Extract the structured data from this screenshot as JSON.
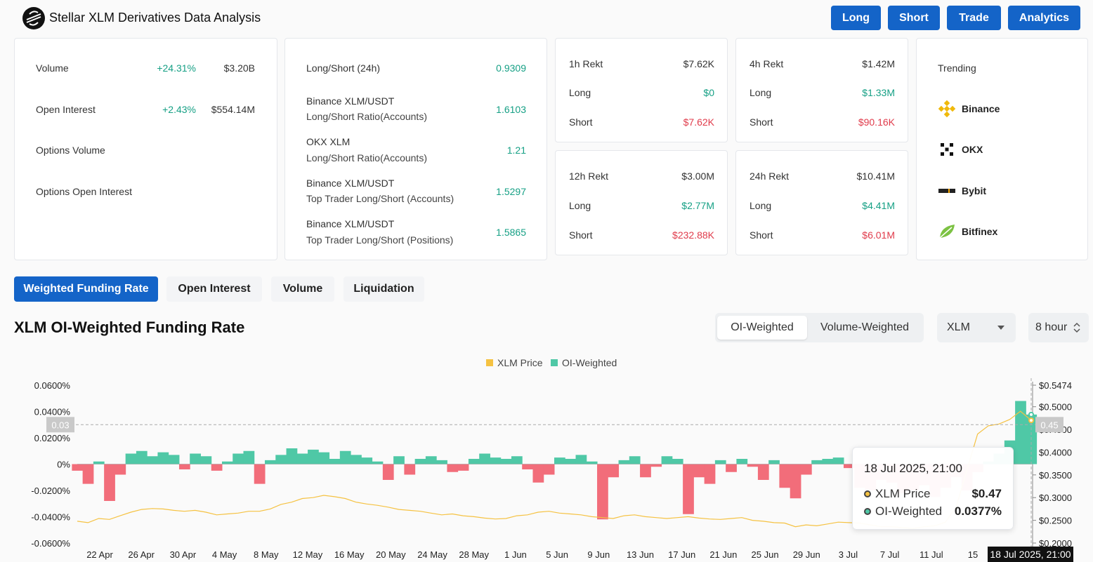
{
  "header": {
    "title": "Stellar XLM Derivatives Data Analysis",
    "buttons": [
      "Long",
      "Short",
      "Trade",
      "Analytics"
    ]
  },
  "overview": {
    "rows": [
      {
        "label": "Volume",
        "change": "+24.31%",
        "value": "$3.20B"
      },
      {
        "label": "Open Interest",
        "change": "+2.43%",
        "value": "$554.14M"
      },
      {
        "label": "Options Volume",
        "change": "",
        "value": ""
      },
      {
        "label": "Options Open Interest",
        "change": "",
        "value": ""
      }
    ]
  },
  "ratios": {
    "rows": [
      {
        "line1": "Long/Short (24h)",
        "line2": "",
        "value": "0.9309"
      },
      {
        "line1": "Binance XLM/USDT",
        "line2": "Long/Short Ratio(Accounts)",
        "value": "1.6103"
      },
      {
        "line1": "OKX XLM",
        "line2": "Long/Short Ratio(Accounts)",
        "value": "1.21"
      },
      {
        "line1": "Binance XLM/USDT",
        "line2": "Top Trader Long/Short (Accounts)",
        "value": "1.5297"
      },
      {
        "line1": "Binance XLM/USDT",
        "line2": "Top Trader Long/Short (Positions)",
        "value": "1.5865"
      }
    ]
  },
  "rekt": [
    {
      "title": "1h Rekt",
      "total": "$7.62K",
      "long_label": "Long",
      "long": "$0",
      "short_label": "Short",
      "short": "$7.62K"
    },
    {
      "title": "4h Rekt",
      "total": "$1.42M",
      "long_label": "Long",
      "long": "$1.33M",
      "short_label": "Short",
      "short": "$90.16K"
    },
    {
      "title": "12h Rekt",
      "total": "$3.00M",
      "long_label": "Long",
      "long": "$2.77M",
      "short_label": "Short",
      "short": "$232.88K"
    },
    {
      "title": "24h Rekt",
      "total": "$10.41M",
      "long_label": "Long",
      "long": "$4.41M",
      "short_label": "Short",
      "short": "$6.01M"
    }
  ],
  "trending": {
    "title": "Trending",
    "items": [
      {
        "name": "Binance",
        "icon": "binance-icon"
      },
      {
        "name": "OKX",
        "icon": "okx-icon"
      },
      {
        "name": "Bybit",
        "icon": "bybit-icon"
      },
      {
        "name": "Bitfinex",
        "icon": "bitfinex-icon"
      }
    ]
  },
  "tabs": [
    "Weighted Funding Rate",
    "Open Interest",
    "Volume",
    "Liquidation"
  ],
  "section_title": "XLM OI-Weighted Funding Rate",
  "weighting": {
    "options": [
      "OI-Weighted",
      "Volume-Weighted"
    ],
    "selected": "OI-Weighted"
  },
  "symbol_select": "XLM",
  "interval_select": "8 hour",
  "colors": {
    "accent": "#1464c8",
    "positive": "#16a085",
    "negative": "#e03b4b",
    "funding_pos_fill": "#4fc8a6",
    "funding_neg_fill": "#f26d7a",
    "price_line": "#f5c242"
  },
  "tooltip": {
    "date": "18 Jul 2025, 21:00",
    "rows": [
      {
        "name": "XLM Price",
        "value": "$0.47"
      },
      {
        "name": "OI-Weighted",
        "value": "0.0377%"
      }
    ]
  },
  "crosshair": {
    "left_label": "0.03",
    "right_label": "0.45",
    "x_label": "18 Jul 2025, 21:00"
  },
  "chart_data": {
    "type": "area",
    "legend": [
      "XLM Price",
      "OI-Weighted"
    ],
    "legend_position": "top-center",
    "x_ticks": [
      "22 Apr",
      "26 Apr",
      "30 Apr",
      "4 May",
      "8 May",
      "12 May",
      "16 May",
      "20 May",
      "24 May",
      "28 May",
      "1 Jun",
      "5 Jun",
      "9 Jun",
      "13 Jun",
      "17 Jun",
      "21 Jun",
      "25 Jun",
      "29 Jun",
      "3 Jul",
      "7 Jul",
      "11 Jul",
      "15"
    ],
    "y_left_ticks": [
      "0.0600%",
      "0.0400%",
      "0.0200%",
      "0%",
      "-0.0200%",
      "-0.0400%",
      "-0.0600%"
    ],
    "y_left_range": [
      -0.06,
      0.06
    ],
    "y_right_ticks": [
      "$0.5474",
      "$0.5000",
      "$0.4500",
      "$0.4000",
      "$0.3500",
      "$0.3000",
      "$0.2500",
      "$0.2000"
    ],
    "y_right_range": [
      0.2,
      0.5474
    ],
    "series": [
      {
        "name": "OI-Weighted",
        "x": [
          0,
          1,
          2,
          3,
          4,
          5,
          6,
          7,
          8,
          9,
          10,
          11,
          12,
          13,
          14,
          15,
          16,
          17,
          18,
          19,
          20,
          21,
          22,
          23,
          24,
          25,
          26,
          27,
          28,
          29,
          30,
          31,
          32,
          33,
          34,
          35,
          36,
          37,
          38,
          39,
          40,
          41,
          42,
          43,
          44,
          45,
          46,
          47,
          48,
          49,
          50,
          51,
          52,
          53,
          54,
          55,
          56,
          57,
          58,
          59,
          60,
          61,
          62,
          63,
          64,
          65,
          66,
          67,
          68,
          69,
          70,
          71,
          72,
          73,
          74,
          75,
          76,
          77,
          78,
          79,
          80,
          81,
          82,
          83,
          84,
          85,
          86,
          87,
          88,
          89
        ],
        "values": [
          -0.005,
          -0.015,
          0.002,
          -0.028,
          -0.008,
          0.008,
          0.01,
          0.006,
          0.009,
          0.007,
          -0.004,
          0.008,
          0.006,
          -0.005,
          0.002,
          0.008,
          0.01,
          -0.015,
          0.003,
          0.007,
          0.012,
          0.008,
          0.011,
          0.009,
          0.004,
          0.01,
          0.007,
          0.005,
          0.002,
          -0.012,
          0.006,
          -0.008,
          0.004,
          0.006,
          0.003,
          -0.006,
          -0.005,
          0.004,
          0.008,
          0.005,
          0.004,
          0.006,
          -0.004,
          -0.014,
          -0.008,
          0.005,
          0.004,
          0.007,
          0.002,
          -0.042,
          -0.01,
          0.003,
          0.006,
          -0.01,
          -0.002,
          0.006,
          0.004,
          -0.038,
          -0.01,
          -0.015,
          0.003,
          -0.006,
          0.004,
          -0.002,
          -0.012,
          0.003,
          -0.018,
          -0.026,
          -0.008,
          0.003,
          0.004,
          0.005,
          -0.003,
          -0.018,
          -0.02,
          -0.012,
          -0.014,
          -0.022,
          -0.02,
          -0.016,
          -0.025,
          -0.018,
          -0.01,
          -0.02,
          -0.006,
          0.002,
          0.008,
          0.018,
          0.048,
          0.0377
        ]
      },
      {
        "name": "XLM Price",
        "x": [
          0,
          1,
          2,
          3,
          4,
          5,
          6,
          7,
          8,
          9,
          10,
          11,
          12,
          13,
          14,
          15,
          16,
          17,
          18,
          19,
          20,
          21,
          22,
          23,
          24,
          25,
          26,
          27,
          28,
          29,
          30,
          31,
          32,
          33,
          34,
          35,
          36,
          37,
          38,
          39,
          40,
          41,
          42,
          43,
          44,
          45,
          46,
          47,
          48,
          49,
          50,
          51,
          52,
          53,
          54,
          55,
          56,
          57,
          58,
          59,
          60,
          61,
          62,
          63,
          64,
          65,
          66,
          67,
          68,
          69,
          70,
          71,
          72,
          73,
          74,
          75,
          76,
          77,
          78,
          79,
          80,
          81,
          82,
          83,
          84,
          85,
          86,
          87,
          88,
          89
        ],
        "values": [
          0.248,
          0.245,
          0.254,
          0.252,
          0.26,
          0.268,
          0.274,
          0.276,
          0.275,
          0.272,
          0.27,
          0.272,
          0.268,
          0.262,
          0.264,
          0.266,
          0.27,
          0.27,
          0.275,
          0.285,
          0.29,
          0.298,
          0.3,
          0.305,
          0.302,
          0.298,
          0.29,
          0.286,
          0.283,
          0.279,
          0.274,
          0.272,
          0.27,
          0.266,
          0.262,
          0.264,
          0.26,
          0.258,
          0.255,
          0.253,
          0.254,
          0.26,
          0.262,
          0.268,
          0.27,
          0.266,
          0.264,
          0.262,
          0.258,
          0.256,
          0.254,
          0.26,
          0.262,
          0.258,
          0.256,
          0.254,
          0.256,
          0.258,
          0.255,
          0.253,
          0.252,
          0.254,
          0.256,
          0.25,
          0.248,
          0.245,
          0.244,
          0.236,
          0.24,
          0.238,
          0.242,
          0.246,
          0.245,
          0.244,
          0.24,
          0.236,
          0.236,
          0.234,
          0.232,
          0.236,
          0.238,
          0.246,
          0.28,
          0.36,
          0.44,
          0.458,
          0.462,
          0.472,
          0.49,
          0.47
        ]
      }
    ]
  }
}
